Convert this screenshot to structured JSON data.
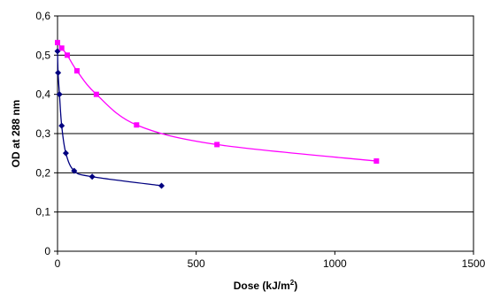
{
  "chart_data": {
    "type": "scatter",
    "title": "",
    "xlabel": "Dose (kJ/m",
    "xlabel_superscript": "2",
    "xlabel_suffix": ")",
    "ylabel": "OD at 288 nm",
    "xlim": [
      0,
      1500
    ],
    "ylim": [
      0,
      0.6
    ],
    "x_ticks": [
      "0",
      "500",
      "1000",
      "1500"
    ],
    "y_ticks": [
      "0",
      "0,1",
      "0,2",
      "0,3",
      "0,4",
      "0,5",
      "0,6"
    ],
    "grid": "horizontal",
    "legend": "none",
    "series": [
      {
        "color": "#000080",
        "marker": "diamond",
        "smooth": true,
        "points": [
          [
            0,
            0.51
          ],
          [
            2,
            0.455
          ],
          [
            7,
            0.4
          ],
          [
            15,
            0.32
          ],
          [
            30,
            0.25
          ],
          [
            60,
            0.205
          ],
          [
            125,
            0.19
          ],
          [
            375,
            0.167
          ]
        ]
      },
      {
        "color": "#ff00ff",
        "marker": "square",
        "smooth": true,
        "points": [
          [
            0,
            0.532
          ],
          [
            15,
            0.518
          ],
          [
            35,
            0.5
          ],
          [
            70,
            0.46
          ],
          [
            140,
            0.4
          ],
          [
            285,
            0.322
          ],
          [
            575,
            0.272
          ],
          [
            1150,
            0.23
          ]
        ]
      }
    ]
  }
}
